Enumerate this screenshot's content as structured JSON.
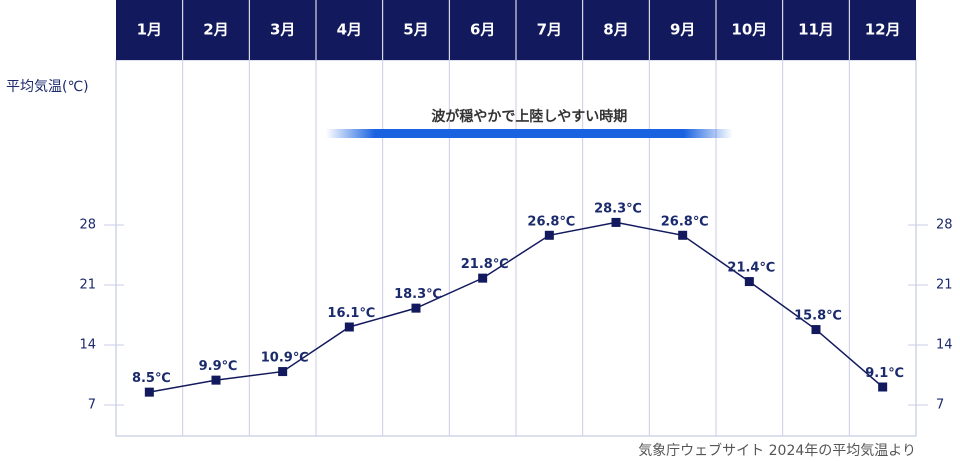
{
  "chart_data": {
    "type": "line",
    "categories": [
      "1月",
      "2月",
      "3月",
      "4月",
      "5月",
      "6月",
      "7月",
      "8月",
      "9月",
      "10月",
      "11月",
      "12月"
    ],
    "series": [
      {
        "values": [
          8.5,
          9.9,
          10.9,
          16.1,
          18.3,
          21.8,
          26.8,
          28.3,
          26.8,
          21.4,
          15.8,
          9.1
        ]
      }
    ],
    "data_labels": [
      "8.5℃",
      "9.9℃",
      "10.9℃",
      "16.1℃",
      "18.3℃",
      "21.8℃",
      "26.8℃",
      "28.3℃",
      "26.8℃",
      "21.4℃",
      "15.8℃",
      "9.1℃"
    ],
    "ylabel": "平均気温(℃)",
    "yticks": [
      7,
      14,
      21,
      28
    ],
    "ylim": [
      3,
      44
    ],
    "grid": true,
    "annotation": {
      "text": "波が穏やかで上陸しやすい時期",
      "start_month_index": 3,
      "end_month_index": 9
    },
    "source": "気象庁ウェブサイト 2024年の平均気温より",
    "colors": {
      "header": "#12195c",
      "line": "#12195c",
      "band": "#1a63e0",
      "grid": "#c9cde8",
      "text": "#1b2a6b"
    }
  }
}
